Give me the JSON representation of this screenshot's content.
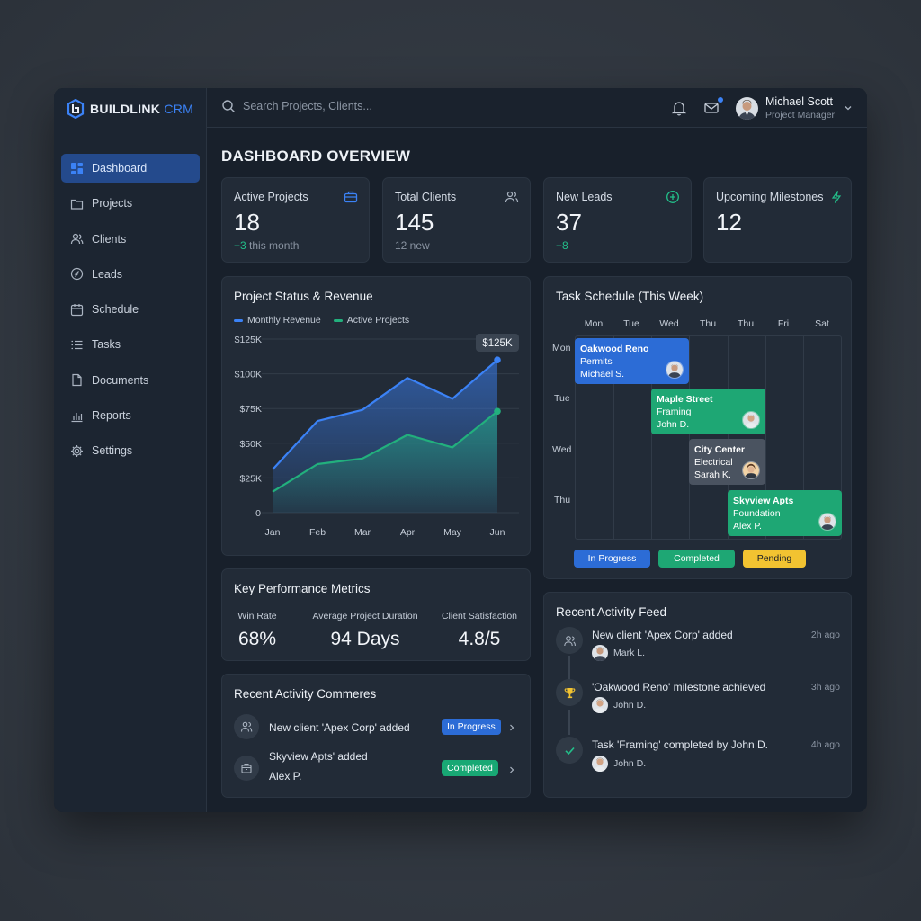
{
  "app": {
    "brand_bold": "BUILDLINK",
    "brand_light": "CRM",
    "accent_color": "#3b82f6"
  },
  "sidebar": {
    "items": [
      {
        "label": "Dashboard",
        "icon": "dashboard-icon",
        "active": true
      },
      {
        "label": "Projects",
        "icon": "folder-icon"
      },
      {
        "label": "Clients",
        "icon": "users-icon"
      },
      {
        "label": "Leads",
        "icon": "leads-icon"
      },
      {
        "label": "Schedule",
        "icon": "calendar-icon"
      },
      {
        "label": "Tasks",
        "icon": "list-icon"
      },
      {
        "label": "Documents",
        "icon": "document-icon"
      },
      {
        "label": "Reports",
        "icon": "bar-chart-icon"
      },
      {
        "label": "Settings",
        "icon": "gear-icon"
      }
    ]
  },
  "topbar": {
    "search_placeholder": "Search Projects, Clients...",
    "user_name": "Michael Scott",
    "user_role": "Project Manager"
  },
  "page": {
    "title": "DASHBOARD OVERVIEW"
  },
  "kpis": [
    {
      "label": "Active Projects",
      "value": "18",
      "sub_highlight": "+3",
      "sub_text": " this month",
      "icon": "briefcase-icon"
    },
    {
      "label": "Total Clients",
      "value": "145",
      "sub_highlight": "",
      "sub_text": "12 new",
      "icon": "users-icon"
    },
    {
      "label": "New Leads",
      "value": "37",
      "sub_highlight": "+8",
      "sub_text": "",
      "icon": "plus-circle-icon"
    },
    {
      "label": "Upcoming Milestones",
      "value": "12",
      "sub_highlight": "",
      "sub_text": "",
      "icon": "lightning-icon"
    }
  ],
  "revenue_chart": {
    "title": "Project Status & Revenue",
    "tooltip": "$125K"
  },
  "chart_data": {
    "type": "area",
    "categories": [
      "Jan",
      "Feb",
      "Mar",
      "Apr",
      "May",
      "Jun"
    ],
    "series": [
      {
        "name": "Monthly Revenue",
        "values": [
          31,
          66,
          74,
          97,
          82,
          110
        ],
        "color": "#3b82f6"
      },
      {
        "name": "Active Projects",
        "values": [
          15,
          35,
          39,
          56,
          47,
          73
        ],
        "color": "#22b07d"
      }
    ],
    "ylim": [
      0,
      125
    ],
    "yticks": [
      "0",
      "$25K",
      "$50K",
      "$75K",
      "$100K",
      "$125K"
    ],
    "legend": "top-left",
    "grid": true
  },
  "kpm": {
    "title": "Key Performance Metrics",
    "metrics": [
      {
        "label": "Win Rate",
        "value": "68%"
      },
      {
        "label": "Average Project Duration",
        "value": "94 Days"
      },
      {
        "label": "Client Satisfaction",
        "value": "4.8/5"
      }
    ]
  },
  "recent_commeres": {
    "title": "Recent Activity Commeres",
    "rows": [
      {
        "text": "New client 'Apex Corp' added",
        "sub": "",
        "badge": "In Progress",
        "badge_color": "#2c6cd6",
        "icon": "users-icon"
      },
      {
        "text": "Skyview Apts' added",
        "sub": "Alex P.",
        "badge": "Completed",
        "badge_color": "#18a874",
        "icon": "package-icon"
      }
    ]
  },
  "schedule": {
    "title": "Task Schedule (This Week)",
    "days": [
      "Mon",
      "Tue",
      "Wed",
      "Thu",
      "Thu",
      "Fri",
      "Sat"
    ],
    "rows": [
      "Mon",
      "Tue",
      "Wed",
      "Thu"
    ],
    "events": [
      {
        "title": "Oakwood Reno",
        "task": "Permits",
        "person": "Michael S.",
        "status": "In Progress"
      },
      {
        "title": "Maple Street",
        "task": "Framing",
        "person": "John D.",
        "status": "Completed"
      },
      {
        "title": "City Center",
        "task": "Electrical",
        "person": "Sarah K.",
        "status": "Pending"
      },
      {
        "title": "Skyview Apts",
        "task": "Foundation",
        "person": "Alex P.",
        "status": "Completed"
      }
    ],
    "legend": [
      "In Progress",
      "Completed",
      "Pending"
    ]
  },
  "feed": {
    "title": "Recent Activity Feed",
    "items": [
      {
        "text": "New client 'Apex Corp' added",
        "time": "2h ago",
        "user": "Mark L.",
        "icon": "users-icon"
      },
      {
        "text": "'Oakwood Reno' milestone achieved",
        "time": "3h ago",
        "user": "John D.",
        "icon": "trophy-icon"
      },
      {
        "text": "Task 'Framing' completed by John D.",
        "time": "4h ago",
        "user": "John D.",
        "icon": "check-icon"
      }
    ]
  }
}
